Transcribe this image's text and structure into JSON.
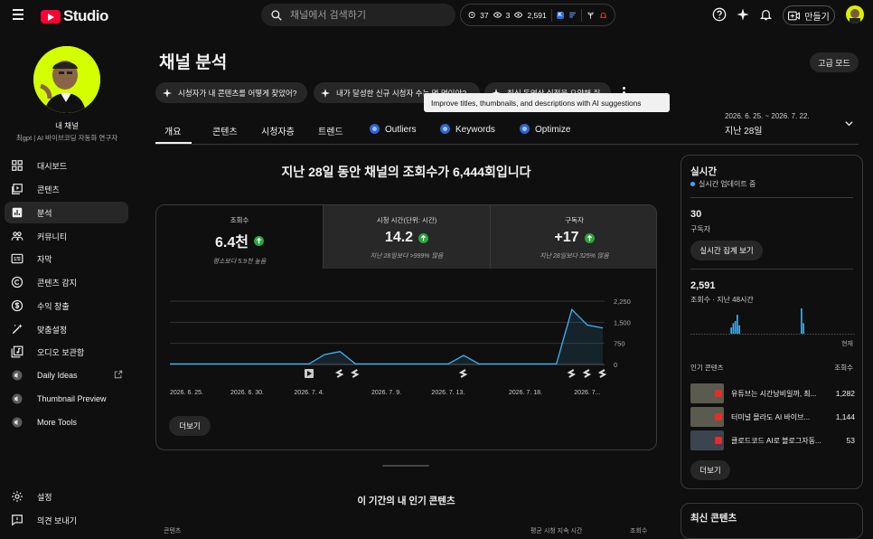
{
  "topbar": {
    "logo_text": "Studio",
    "search_placeholder": "채널에서 검색하기",
    "stats": {
      "subs": "37",
      "views_short": "3",
      "views": "2,591",
      "chip": "K"
    },
    "create_label": "만들기"
  },
  "sidebar": {
    "channel_name": "내 채널",
    "channel_sub": "최gpt | AI 바이브코딩 자동화 연구자",
    "items": [
      {
        "label": "대시보드",
        "icon": "dashboard-icon"
      },
      {
        "label": "콘텐츠",
        "icon": "content-icon"
      },
      {
        "label": "분석",
        "icon": "analytics-icon",
        "active": true
      },
      {
        "label": "커뮤니티",
        "icon": "community-icon"
      },
      {
        "label": "자막",
        "icon": "subtitles-icon"
      },
      {
        "label": "콘텐츠 감지",
        "icon": "copyright-icon"
      },
      {
        "label": "수익 창출",
        "icon": "monetization-icon"
      },
      {
        "label": "맞춤설정",
        "icon": "customization-icon"
      },
      {
        "label": "오디오 보관함",
        "icon": "audio-library-icon"
      },
      {
        "label": "Daily Ideas",
        "icon": "extension-icon"
      },
      {
        "label": "Thumbnail Preview",
        "icon": "extension-icon"
      },
      {
        "label": "More Tools",
        "icon": "extension-icon"
      }
    ],
    "settings_label": "설정",
    "feedback_label": "의견 보내기"
  },
  "header": {
    "title": "채널 분석",
    "advanced_label": "고급 모드",
    "ai_chips": [
      "시청자가 내 콘텐츠를 어떻게 찾았어?",
      "내가 달성한 신규 시청자 수는 몇 명이야?",
      "최신 동영상 실적을 요약해 줘"
    ],
    "tooltip": "Improve titles, thumbnails, and descriptions with AI suggestions",
    "tabs": [
      "개요",
      "콘텐츠",
      "시청자층",
      "트렌드"
    ],
    "ai_tabs": [
      "Outliers",
      "Keywords",
      "Optimize"
    ],
    "date_range": "2026. 6. 25. ~ 2026. 7. 22.",
    "date_label": "지난 28일"
  },
  "main": {
    "headline": "지난 28일 동안 채널의 조회수가 6,444회입니다",
    "metrics": [
      {
        "label": "조회수",
        "value": "6.4천",
        "sub": "평소보다 5.9천 높음"
      },
      {
        "label": "시청 시간(단위: 시간)",
        "value": "14.2",
        "sub": "지난 28일보다 >999% 많음"
      },
      {
        "label": "구독자",
        "value": "+17",
        "sub": "지난 28일보다 325% 많음"
      }
    ],
    "more_label": "더보기",
    "top_content_title": "이 기간의 내 인기 콘텐츠",
    "table_headers": [
      "콘텐츠",
      "평균 시청 지속 시간",
      "조회수"
    ]
  },
  "chart_data": {
    "type": "area",
    "y_ticks": [
      "2,250",
      "1,500",
      "750",
      "0"
    ],
    "ylim": [
      0,
      2250
    ],
    "x_labels": [
      "2026. 6. 25.",
      "2026. 6. 30.",
      "2026. 7. 4.",
      "2026. 7. 9.",
      "2026. 7. 13.",
      "2026. 7. 18.",
      "2026. 7..."
    ],
    "values": [
      20,
      20,
      20,
      20,
      20,
      20,
      20,
      20,
      20,
      20,
      350,
      460,
      20,
      20,
      20,
      20,
      20,
      20,
      20,
      320,
      20,
      20,
      20,
      20,
      20,
      20,
      1950,
      1400,
      1300
    ],
    "color": "#41b4f5"
  },
  "realtime": {
    "title": "실시간",
    "live_label": "실시간 업데이트 중",
    "subs_value": "30",
    "subs_label": "구독자",
    "view_btn": "실시간 집계 보기",
    "views_value": "2,591",
    "views_label": "조회수 · 지난 48시간",
    "now_label": "현재",
    "popular_label": "인기 콘텐츠",
    "popular_col": "조회수",
    "popular": [
      {
        "title": "유튜브는 시간낭비일까, 최...",
        "views": "1,282"
      },
      {
        "title": "터미널 몰라도 AI 바이브...",
        "views": "1,144"
      },
      {
        "title": "클로드코드 AI로 블로그자동...",
        "views": "53"
      }
    ],
    "more_label": "더보기",
    "latest_title": "최신 콘텐츠",
    "bars": [
      0,
      0,
      0,
      0,
      0,
      0,
      0,
      0,
      0,
      0,
      0,
      0,
      0,
      0,
      0,
      0,
      0,
      0,
      0,
      0,
      3,
      5,
      6,
      9,
      4,
      0,
      0,
      0,
      0,
      0,
      0,
      0,
      0,
      0,
      0,
      0,
      0,
      0,
      0,
      0,
      0,
      0,
      0,
      0,
      0,
      0,
      0,
      0,
      0,
      0,
      0,
      0,
      0,
      0,
      0,
      12,
      5,
      0,
      0,
      0,
      0,
      0,
      0,
      0,
      0,
      0,
      0,
      0,
      0,
      0,
      0,
      0,
      0,
      0,
      0,
      0,
      0,
      0,
      0,
      0,
      0,
      0
    ]
  }
}
